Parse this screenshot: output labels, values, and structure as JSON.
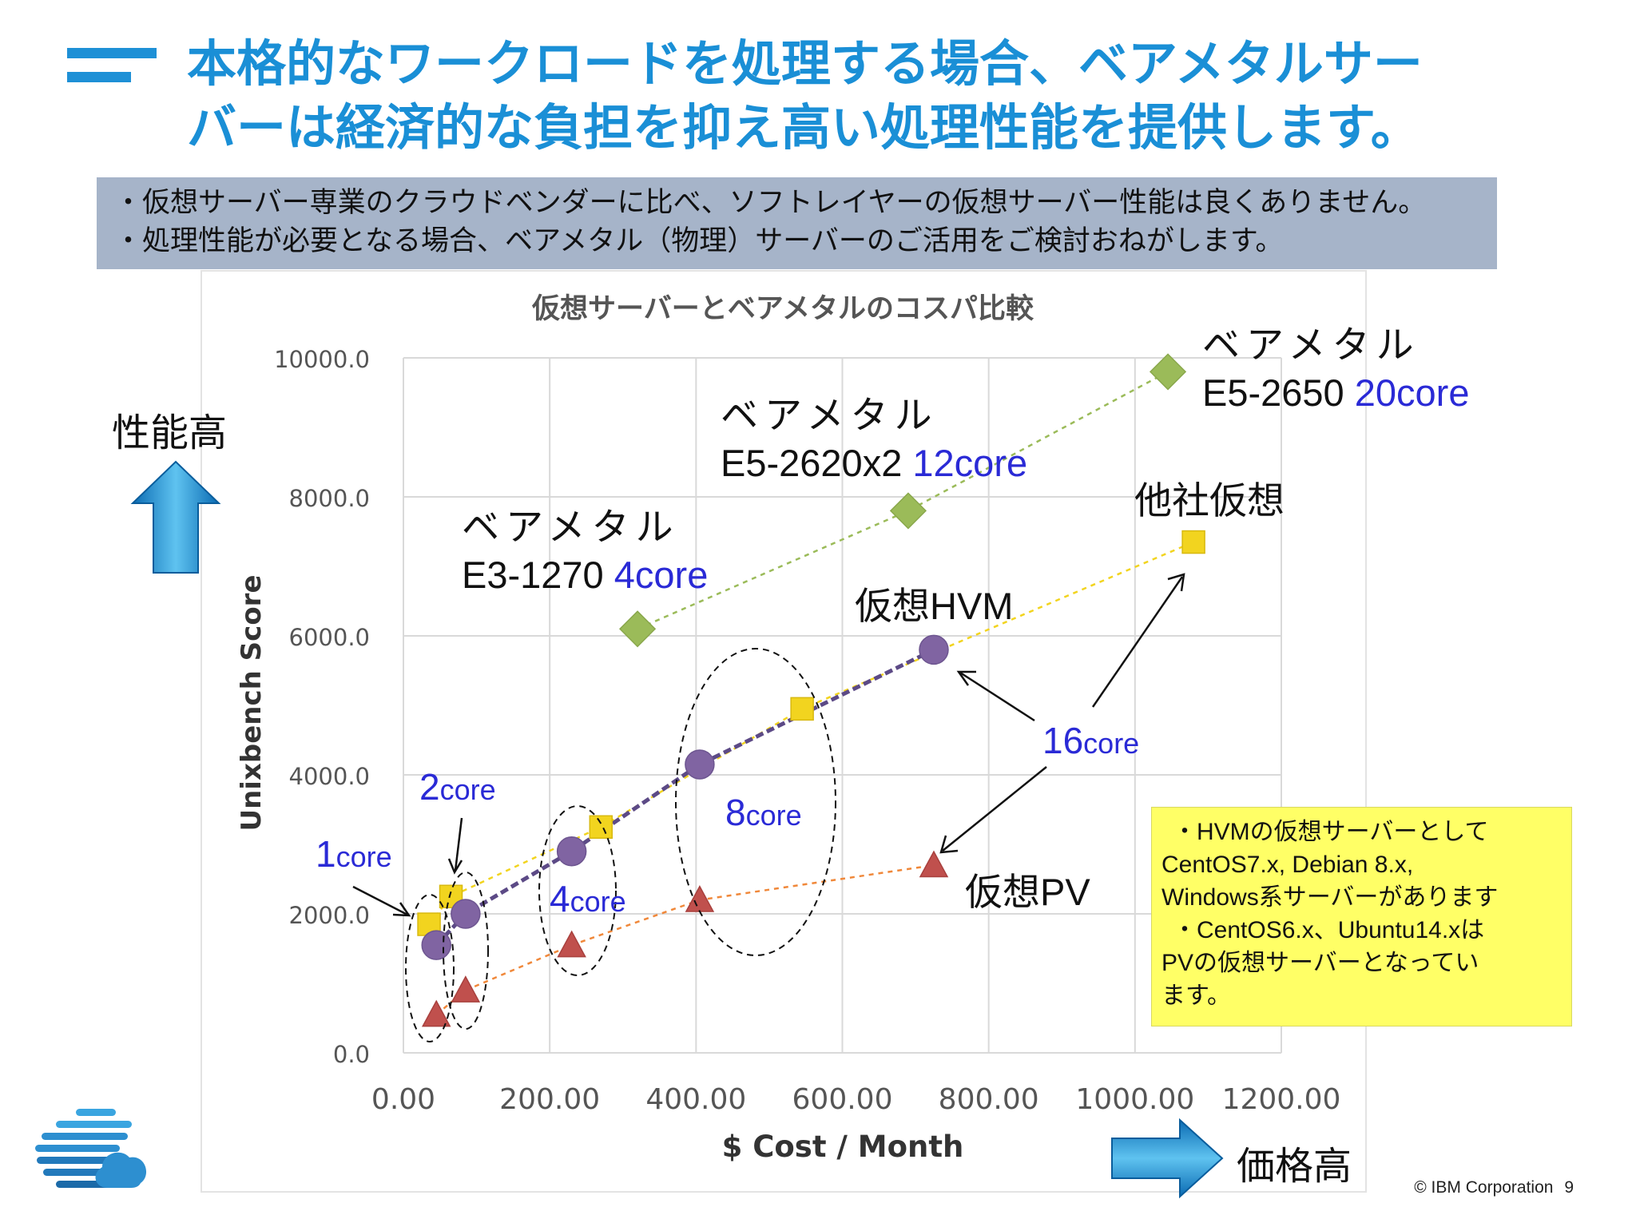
{
  "title": {
    "line1": "本格的なワークロードを処理する場合、ベアメタルサー",
    "line2": "バーは経済的な負担を抑え高い処理性能を提供します。"
  },
  "notes": [
    "・仮想サーバー専業のクラウドベンダーに比べ、ソフトレイヤーの仮想サーバー性能は良くありません。",
    "・処理性能が必要となる場合、ベアメタル（物理）サーバーのご活用をご検討おねがします。"
  ],
  "chart_data": {
    "type": "scatter",
    "title": "仮想サーバーとベアメタルのコスパ比較",
    "xlabel": "$ Cost / Month",
    "ylabel": "Unixbench Score",
    "xlim": [
      0,
      1200
    ],
    "ylim": [
      0,
      10000
    ],
    "x_ticks": [
      "0.00",
      "200.00",
      "400.00",
      "600.00",
      "800.00",
      "1000.00",
      "1200.00"
    ],
    "y_ticks": [
      "0.0",
      "2000.0",
      "4000.0",
      "6000.0",
      "8000.0",
      "10000.0"
    ],
    "grid": true,
    "series": [
      {
        "color": "#9bbb59",
        "marker": "diamond",
        "points": [
          [
            320,
            6100
          ],
          [
            690,
            7800
          ],
          [
            1045,
            9800
          ]
        ]
      },
      {
        "color": "#f2d41f",
        "marker": "square",
        "points": [
          [
            35,
            1850
          ],
          [
            65,
            2250
          ],
          [
            270,
            3250
          ],
          [
            545,
            4950
          ],
          [
            1080,
            7350
          ]
        ]
      },
      {
        "color": "#8064a2",
        "marker": "circle",
        "points": [
          [
            45,
            1550
          ],
          [
            85,
            2000
          ],
          [
            230,
            2900
          ],
          [
            405,
            4150
          ],
          [
            725,
            5800
          ]
        ]
      },
      {
        "color": "#c0504d",
        "marker": "triangle",
        "points": [
          [
            45,
            550
          ],
          [
            85,
            900
          ],
          [
            230,
            1550
          ],
          [
            405,
            2200
          ],
          [
            725,
            2700
          ]
        ]
      }
    ]
  },
  "annotations": {
    "bm_e3_name": "ベアメタル",
    "bm_e3_cpu": "E3-1270 ",
    "bm_e3_core": "4core",
    "bm_e5_2620_name": "ベアメタル",
    "bm_e5_2620_cpu": "E5-2620x2 ",
    "bm_e5_2620_core": "12core",
    "bm_e5_2650_name": "ベアメタル",
    "bm_e5_2650_cpu": "E5-2650 ",
    "bm_e5_2650_core": "20core",
    "other_virtual": "他社仮想",
    "virtual_hvm": "仮想HVM",
    "virtual_pv": "仮想PV",
    "core1_num": "1",
    "core1_unit": "core",
    "core2_num": "2",
    "core2_unit": "core",
    "core4_num": "4",
    "core4_unit": "core",
    "core8_num": "8",
    "core8_unit": "core",
    "core16_num": "16",
    "core16_unit": "core",
    "perf_high": "性能高",
    "price_high": "価格高"
  },
  "callout": [
    "・HVMの仮想サーバーとして",
    "CentOS7.x, Debian 8.x,",
    "Windows系サーバーがあります",
    "・CentOS6.x、Ubuntu14.xは",
    "PVの仮想サーバーとなってい",
    "ます。"
  ],
  "footer": {
    "copyright": "© IBM Corporation",
    "page": "9"
  },
  "colors": {
    "title_blue": "#1a8fd6",
    "core_blue": "#2a2ad6",
    "notes_bg": "#a6b4c9",
    "callout_bg": "#ffff66"
  }
}
